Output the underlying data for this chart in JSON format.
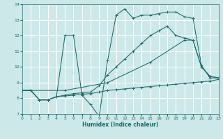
{
  "xlabel": "Humidex (Indice chaleur)",
  "bg_color": "#cce8e8",
  "grid_color": "#b8dede",
  "line_color": "#1a6b6b",
  "xlim": [
    0,
    23
  ],
  "ylim": [
    7,
    14
  ],
  "xticks": [
    0,
    1,
    2,
    3,
    4,
    5,
    6,
    7,
    8,
    9,
    10,
    11,
    12,
    13,
    14,
    15,
    16,
    17,
    18,
    19,
    20,
    21,
    22,
    23
  ],
  "yticks": [
    7,
    8,
    9,
    10,
    11,
    12,
    13,
    14
  ],
  "lines": [
    {
      "x": [
        0,
        1,
        2,
        3,
        4,
        5,
        6,
        7,
        8,
        9,
        10,
        11,
        12,
        13,
        14,
        15,
        16,
        17,
        18,
        19,
        20,
        21,
        22,
        23
      ],
      "y": [
        8.5,
        8.5,
        7.9,
        7.9,
        8.1,
        8.15,
        8.2,
        8.25,
        8.3,
        8.4,
        8.5,
        8.55,
        8.6,
        8.65,
        8.7,
        8.75,
        8.8,
        8.85,
        8.9,
        8.95,
        9.0,
        9.05,
        9.1,
        9.2
      ]
    },
    {
      "x": [
        0,
        1,
        2,
        3,
        4,
        5,
        6,
        7,
        8,
        9,
        10,
        11,
        12,
        13,
        14,
        15,
        16,
        17,
        18,
        19,
        20,
        21,
        22,
        23
      ],
      "y": [
        8.5,
        8.5,
        7.9,
        7.9,
        8.1,
        12.0,
        12.0,
        8.2,
        7.6,
        6.85,
        10.4,
        13.3,
        13.7,
        13.1,
        13.3,
        13.3,
        13.4,
        13.5,
        13.5,
        13.2,
        13.1,
        10.1,
        9.3,
        9.3
      ]
    },
    {
      "x": [
        0,
        1,
        2,
        3,
        4,
        5,
        6,
        7,
        8,
        9,
        10,
        11,
        12,
        13,
        14,
        15,
        16,
        17,
        18,
        19,
        20,
        21,
        22,
        23
      ],
      "y": [
        8.5,
        8.5,
        7.9,
        7.9,
        8.1,
        8.2,
        8.3,
        8.35,
        8.4,
        8.8,
        9.5,
        10.0,
        10.5,
        11.0,
        11.5,
        12.0,
        12.3,
        12.6,
        12.0,
        11.85,
        11.7,
        10.0,
        9.4,
        9.3
      ]
    },
    {
      "x": [
        0,
        5,
        10,
        15,
        19,
        20,
        21,
        22,
        23
      ],
      "y": [
        8.5,
        8.5,
        9.0,
        10.3,
        11.7,
        11.7,
        10.0,
        9.4,
        9.3
      ]
    }
  ]
}
